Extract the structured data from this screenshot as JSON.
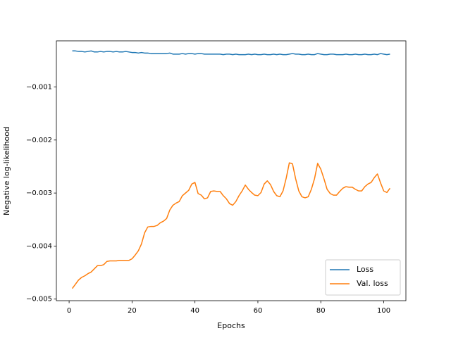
{
  "chart_data": {
    "type": "line",
    "xlabel": "Epochs",
    "ylabel": "Negative log-likelihood",
    "x": [
      1,
      2,
      3,
      4,
      5,
      6,
      7,
      8,
      9,
      10,
      11,
      12,
      13,
      14,
      15,
      16,
      17,
      18,
      19,
      20,
      21,
      22,
      23,
      24,
      25,
      26,
      27,
      28,
      29,
      30,
      31,
      32,
      33,
      34,
      35,
      36,
      37,
      38,
      39,
      40,
      41,
      42,
      43,
      44,
      45,
      46,
      47,
      48,
      49,
      50,
      51,
      52,
      53,
      54,
      55,
      56,
      57,
      58,
      59,
      60,
      61,
      62,
      63,
      64,
      65,
      66,
      67,
      68,
      69,
      70,
      71,
      72,
      73,
      74,
      75,
      76,
      77,
      78,
      79,
      80,
      81,
      82,
      83,
      84,
      85,
      86,
      87,
      88,
      89,
      90,
      91,
      92,
      93,
      94,
      95,
      96,
      97,
      98,
      99,
      100,
      101,
      102
    ],
    "series": [
      {
        "name": "Loss",
        "color": "#1f77b4",
        "values": [
          -0.00032,
          -0.00032,
          -0.00033,
          -0.00033,
          -0.00034,
          -0.00033,
          -0.00032,
          -0.00034,
          -0.00034,
          -0.00033,
          -0.00034,
          -0.00033,
          -0.00033,
          -0.00034,
          -0.00033,
          -0.00034,
          -0.00034,
          -0.00033,
          -0.00034,
          -0.00035,
          -0.00035,
          -0.00036,
          -0.00035,
          -0.00036,
          -0.00036,
          -0.00037,
          -0.00037,
          -0.00037,
          -0.00037,
          -0.00037,
          -0.00037,
          -0.00036,
          -0.00038,
          -0.00038,
          -0.00038,
          -0.00037,
          -0.00038,
          -0.00037,
          -0.00037,
          -0.00038,
          -0.00037,
          -0.00037,
          -0.00038,
          -0.00038,
          -0.00038,
          -0.00038,
          -0.00038,
          -0.00038,
          -0.00039,
          -0.00038,
          -0.00038,
          -0.00039,
          -0.00038,
          -0.00039,
          -0.00039,
          -0.00039,
          -0.00038,
          -0.00039,
          -0.00038,
          -0.00039,
          -0.00039,
          -0.00038,
          -0.00039,
          -0.00039,
          -0.00038,
          -0.00039,
          -0.00038,
          -0.00039,
          -0.00039,
          -0.00038,
          -0.00037,
          -0.00038,
          -0.00038,
          -0.00039,
          -0.00039,
          -0.00038,
          -0.00039,
          -0.00039,
          -0.00037,
          -0.00038,
          -0.00039,
          -0.00039,
          -0.00038,
          -0.00038,
          -0.00039,
          -0.00039,
          -0.00039,
          -0.00038,
          -0.00039,
          -0.00039,
          -0.00038,
          -0.00039,
          -0.00039,
          -0.00038,
          -0.00039,
          -0.00039,
          -0.00038,
          -0.00039,
          -0.00037,
          -0.00038,
          -0.00039,
          -0.00038
        ]
      },
      {
        "name": "Val. loss",
        "color": "#ff7f0e",
        "values": [
          -0.0048,
          -0.00472,
          -0.00464,
          -0.00459,
          -0.00456,
          -0.00452,
          -0.00449,
          -0.00443,
          -0.00437,
          -0.00437,
          -0.00435,
          -0.00429,
          -0.00428,
          -0.00428,
          -0.00428,
          -0.00427,
          -0.00427,
          -0.00427,
          -0.00427,
          -0.00424,
          -0.00417,
          -0.00409,
          -0.00396,
          -0.00375,
          -0.00364,
          -0.00363,
          -0.00363,
          -0.00361,
          -0.00356,
          -0.00353,
          -0.00348,
          -0.00332,
          -0.00323,
          -0.00319,
          -0.00316,
          -0.00305,
          -0.003,
          -0.00295,
          -0.00283,
          -0.0028,
          -0.00301,
          -0.00304,
          -0.00311,
          -0.00309,
          -0.00297,
          -0.00296,
          -0.00297,
          -0.00297,
          -0.00305,
          -0.00311,
          -0.0032,
          -0.00323,
          -0.00316,
          -0.00305,
          -0.00296,
          -0.00285,
          -0.00293,
          -0.00299,
          -0.00304,
          -0.00305,
          -0.00299,
          -0.00283,
          -0.00277,
          -0.00284,
          -0.00297,
          -0.00305,
          -0.00307,
          -0.00296,
          -0.00272,
          -0.00243,
          -0.00245,
          -0.00273,
          -0.00296,
          -0.00307,
          -0.00309,
          -0.00307,
          -0.00293,
          -0.00273,
          -0.00244,
          -0.00255,
          -0.00273,
          -0.00293,
          -0.00301,
          -0.00304,
          -0.00304,
          -0.00297,
          -0.00291,
          -0.00288,
          -0.00289,
          -0.00289,
          -0.00293,
          -0.00296,
          -0.00296,
          -0.00288,
          -0.00283,
          -0.0028,
          -0.00271,
          -0.00264,
          -0.00281,
          -0.00296,
          -0.00299,
          -0.00291
        ]
      }
    ],
    "xlim": [
      -4.05,
      107.05
    ],
    "ylim": [
      -0.00503,
      -0.00013
    ],
    "xticks": [
      0,
      20,
      40,
      60,
      80,
      100
    ],
    "yticks": [
      {
        "value": -0.005,
        "label": "−0.005"
      },
      {
        "value": -0.004,
        "label": "−0.004"
      },
      {
        "value": -0.003,
        "label": "−0.003"
      },
      {
        "value": -0.002,
        "label": "−0.002"
      },
      {
        "value": -0.001,
        "label": "−0.001"
      }
    ],
    "legend": "lower right"
  }
}
